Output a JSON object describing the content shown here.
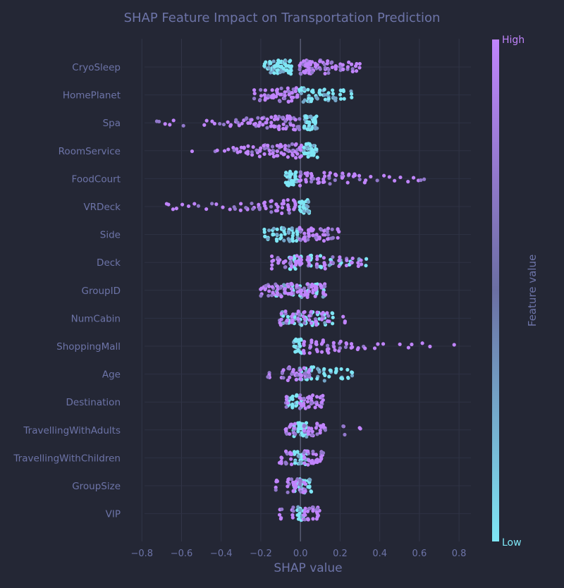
{
  "chart_data": {
    "type": "scatter",
    "subtype": "shap-beeswarm",
    "title": "SHAP Feature Impact on Transportation Prediction",
    "xlabel": "SHAP value",
    "ylabel": "",
    "xlim": [
      -0.84,
      0.86
    ],
    "xticks": [
      -0.8,
      -0.6,
      -0.4,
      -0.2,
      0.0,
      0.2,
      0.4,
      0.6,
      0.8
    ],
    "grid": true,
    "colorbar": {
      "label": "Feature value",
      "high_label": "High",
      "low_label": "Low",
      "high_color": "#c084fc",
      "mid_color": "#6b6fa3",
      "low_color": "#7ee6f5"
    },
    "features": [
      {
        "name": "CryoSleep",
        "low_points": [
          -0.18,
          -0.16,
          -0.15,
          -0.14,
          -0.13,
          -0.12,
          -0.11,
          -0.1,
          -0.09,
          -0.08,
          -0.07,
          -0.06,
          -0.05
        ],
        "high_points": [
          0.0,
          0.02,
          0.03,
          0.04,
          0.05,
          0.06,
          0.08,
          0.1,
          0.12,
          0.14,
          0.16,
          0.18,
          0.2,
          0.22,
          0.24,
          0.26,
          0.28,
          0.3
        ]
      },
      {
        "name": "HomePlanet",
        "low_points": [
          0.0,
          0.02,
          0.04,
          0.06,
          0.08,
          0.1,
          0.12,
          0.14,
          0.16,
          0.18,
          0.2,
          0.22,
          0.26
        ],
        "high_points": [
          -0.23,
          -0.2,
          -0.18,
          -0.16,
          -0.14,
          -0.12,
          -0.1,
          -0.08,
          -0.06,
          -0.04,
          -0.02
        ]
      },
      {
        "name": "Spa",
        "low_points": [
          0.02,
          0.03,
          0.04,
          0.05,
          0.06,
          0.07,
          0.08
        ],
        "high_points": [
          -0.73,
          -0.71,
          -0.68,
          -0.66,
          -0.64,
          -0.59,
          -0.49,
          -0.47,
          -0.45,
          -0.43,
          -0.41,
          -0.39,
          -0.37,
          -0.35,
          -0.33,
          -0.31,
          -0.29,
          -0.27,
          -0.25,
          -0.23,
          -0.21,
          -0.19,
          -0.17,
          -0.15,
          -0.13,
          -0.11,
          -0.09,
          -0.07,
          -0.05,
          -0.03,
          -0.01
        ]
      },
      {
        "name": "RoomService",
        "low_points": [
          0.02,
          0.03,
          0.04,
          0.05,
          0.06,
          0.07,
          0.08
        ],
        "high_points": [
          -0.55,
          -0.43,
          -0.42,
          -0.38,
          -0.36,
          -0.34,
          -0.32,
          -0.3,
          -0.28,
          -0.26,
          -0.24,
          -0.22,
          -0.2,
          -0.18,
          -0.16,
          -0.14,
          -0.12,
          -0.1,
          -0.08,
          -0.06,
          -0.04,
          -0.02,
          0.0
        ]
      },
      {
        "name": "FoodCourt",
        "low_points": [
          -0.07,
          -0.06,
          -0.05,
          -0.04,
          -0.03,
          -0.02
        ],
        "high_points": [
          0.0,
          0.03,
          0.06,
          0.09,
          0.12,
          0.15,
          0.18,
          0.21,
          0.24,
          0.27,
          0.3,
          0.33,
          0.36,
          0.39,
          0.42,
          0.45,
          0.48,
          0.51,
          0.54,
          0.57,
          0.59,
          0.61,
          0.63
        ]
      },
      {
        "name": "VRDeck",
        "low_points": [
          0.0,
          0.01,
          0.02,
          0.03,
          0.04
        ],
        "high_points": [
          -0.68,
          -0.66,
          -0.64,
          -0.62,
          -0.6,
          -0.57,
          -0.54,
          -0.51,
          -0.48,
          -0.45,
          -0.42,
          -0.39,
          -0.36,
          -0.33,
          -0.3,
          -0.27,
          -0.24,
          -0.21,
          -0.18,
          -0.15,
          -0.12,
          -0.09,
          -0.06,
          -0.03
        ]
      },
      {
        "name": "Side",
        "low_points": [
          -0.18,
          -0.16,
          -0.14,
          -0.12,
          -0.1,
          -0.08,
          -0.06,
          -0.04,
          -0.02
        ],
        "high_points": [
          0.0,
          0.02,
          0.04,
          0.06,
          0.08,
          0.1,
          0.12,
          0.14,
          0.16,
          0.19
        ]
      },
      {
        "name": "Deck",
        "low_points": [
          -0.05,
          -0.03,
          0.0,
          0.05,
          0.1,
          0.15,
          0.2,
          0.25,
          0.3,
          0.33
        ],
        "high_points": [
          -0.14,
          -0.11,
          -0.08,
          -0.05,
          -0.02,
          0.0,
          0.04,
          0.08,
          0.12,
          0.16,
          0.2,
          0.23,
          0.26,
          0.29,
          0.31
        ]
      },
      {
        "name": "GroupID",
        "low_points": [
          -0.12,
          -0.08,
          -0.04,
          0.0,
          0.04,
          0.08,
          0.12
        ],
        "high_points": [
          -0.2,
          -0.18,
          -0.16,
          -0.14,
          -0.12,
          -0.1,
          -0.08,
          -0.06,
          -0.04,
          -0.02,
          0.0,
          0.02,
          0.04,
          0.06,
          0.08,
          0.1,
          0.12
        ]
      },
      {
        "name": "NumCabin",
        "low_points": [
          -0.09,
          -0.06,
          -0.03,
          0.0,
          0.03,
          0.06,
          0.09,
          0.12,
          0.16
        ],
        "high_points": [
          -0.1,
          -0.07,
          -0.04,
          -0.01,
          0.02,
          0.05,
          0.08,
          0.11,
          0.14,
          0.22
        ]
      },
      {
        "name": "ShoppingMall",
        "low_points": [
          -0.03,
          -0.02,
          -0.01,
          0.0
        ],
        "high_points": [
          0.02,
          0.05,
          0.08,
          0.11,
          0.14,
          0.17,
          0.2,
          0.23,
          0.26,
          0.29,
          0.32,
          0.37,
          0.39,
          0.42,
          0.5,
          0.54,
          0.56,
          0.62,
          0.65,
          0.78
        ]
      },
      {
        "name": "Age",
        "low_points": [
          0.0,
          0.03,
          0.06,
          0.09,
          0.12,
          0.15,
          0.18,
          0.21,
          0.24,
          0.26
        ],
        "high_points": [
          -0.16,
          -0.09,
          -0.06,
          -0.04,
          -0.02,
          0.0,
          0.02,
          0.04
        ]
      },
      {
        "name": "Destination",
        "low_points": [
          -0.06,
          -0.04,
          -0.02,
          0.0
        ],
        "high_points": [
          -0.07,
          0.0,
          0.02,
          0.04,
          0.06,
          0.08,
          0.1,
          0.11
        ]
      },
      {
        "name": "TravellingWithAdults",
        "low_points": [
          -0.03,
          -0.01,
          0.0,
          0.01,
          0.03
        ],
        "high_points": [
          -0.07,
          -0.05,
          -0.03,
          0.02,
          0.04,
          0.06,
          0.08,
          0.1,
          0.12,
          0.22,
          0.3
        ]
      },
      {
        "name": "TravellingWithChildren",
        "low_points": [
          -0.03,
          -0.01,
          0.0,
          0.01,
          0.03
        ],
        "high_points": [
          -0.1,
          -0.07,
          -0.05,
          0.02,
          0.04,
          0.06,
          0.08,
          0.1,
          0.11
        ]
      },
      {
        "name": "GroupSize",
        "low_points": [
          -0.03,
          -0.01,
          0.0,
          0.01,
          0.02,
          0.04,
          0.05
        ],
        "high_points": [
          -0.12,
          -0.06,
          -0.04,
          -0.02,
          0.0,
          0.02
        ]
      },
      {
        "name": "VIP",
        "low_points": [
          -0.01,
          0.0,
          0.01
        ],
        "high_points": [
          -0.1,
          -0.04,
          0.02,
          0.04,
          0.06,
          0.08,
          0.09
        ]
      }
    ]
  }
}
